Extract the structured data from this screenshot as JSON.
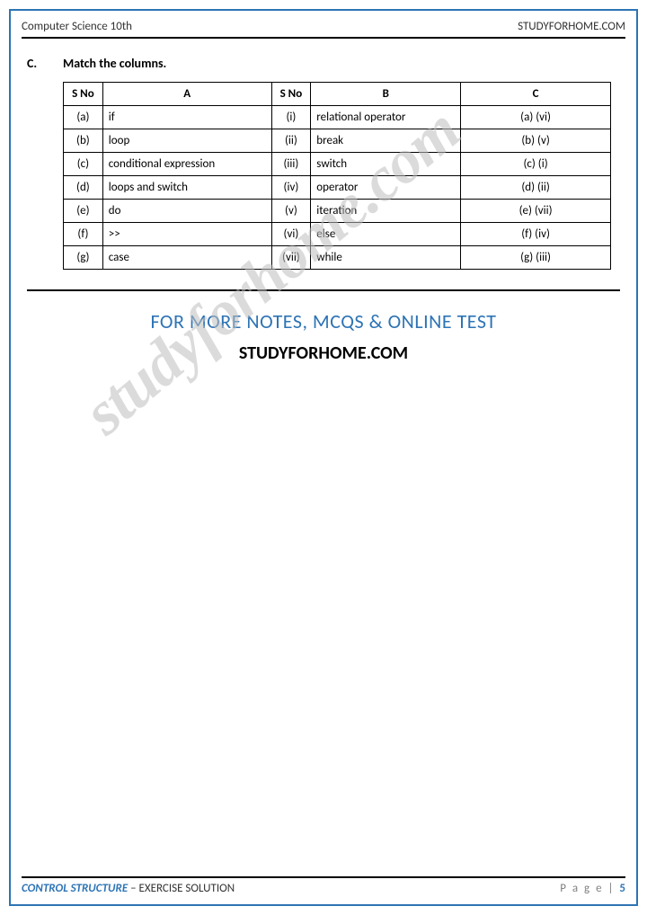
{
  "header": {
    "left": "Computer Science 10th",
    "right": "STUDYFORHOME.COM"
  },
  "question": {
    "letter": "C.",
    "text": "Match the columns."
  },
  "table": {
    "headers": {
      "sno1": "S No",
      "a": "A",
      "sno2": "S No",
      "b": "B",
      "c": "C"
    },
    "rows": [
      {
        "sno1": "(a)",
        "a": "if",
        "sno2": "(i)",
        "b": "relational operator",
        "c": "(a) (vi)"
      },
      {
        "sno1": "(b)",
        "a": "loop",
        "sno2": "(ii)",
        "b": "break",
        "c": "(b) (v)"
      },
      {
        "sno1": "(c)",
        "a": "conditional expression",
        "sno2": "(iii)",
        "b": "switch",
        "c": "(c) (i)"
      },
      {
        "sno1": "(d)",
        "a": "loops and switch",
        "sno2": "(iv)",
        "b": "operator",
        "c": "(d) (ii)"
      },
      {
        "sno1": "(e)",
        "a": "do",
        "sno2": "(v)",
        "b": "iteration",
        "c": "(e) (vii)"
      },
      {
        "sno1": "(f)",
        "a": ">>",
        "sno2": "(vi)",
        "b": "else",
        "c": "(f) (iv)"
      },
      {
        "sno1": "(g)",
        "a": "case",
        "sno2": "(vii)",
        "b": "while",
        "c": "(g) (iii)"
      }
    ]
  },
  "promo": {
    "line1": "FOR MORE NOTES, MCQS & ONLINE TEST",
    "line2": "STUDYFORHOME.COM"
  },
  "watermark": "studyforhome.com",
  "footer": {
    "left_strong": "CONTROL STRUCTURE",
    "left_rest": " – EXERCISE SOLUTION",
    "right_label": "P a g e  | ",
    "page_num": "5"
  },
  "colors": {
    "accent": "#2e74b5",
    "text": "#333333",
    "watermark": "#bfbfbf",
    "border": "#000000"
  }
}
